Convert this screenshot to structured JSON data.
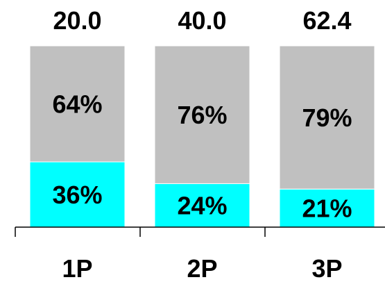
{
  "chart_data": {
    "type": "bar",
    "stacked": "percent",
    "categories": [
      "1P",
      "2P",
      "3P"
    ],
    "totals": [
      "20.0",
      "40.0",
      "62.4"
    ],
    "series": [
      {
        "values": [
          36,
          24,
          21
        ],
        "labels": [
          "36%",
          "24%",
          "21%"
        ],
        "color": "#00ffff"
      },
      {
        "values": [
          64,
          76,
          79
        ],
        "labels": [
          "64%",
          "76%",
          "79%"
        ],
        "color": "#c0c0c0"
      }
    ],
    "ylim": [
      0,
      100
    ],
    "grid": false,
    "legend": "none"
  }
}
